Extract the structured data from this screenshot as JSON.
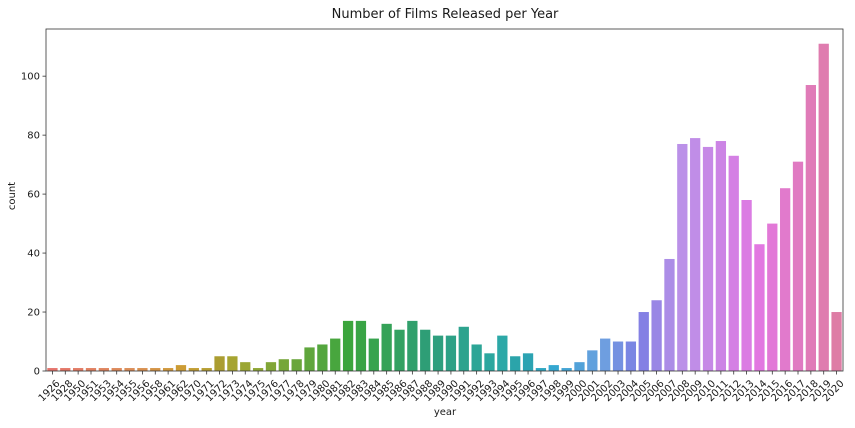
{
  "chart_data": {
    "type": "bar",
    "title": "Number of Films Released per Year",
    "xlabel": "year",
    "ylabel": "count",
    "ylim": [
      0,
      116
    ],
    "yticks": [
      0,
      20,
      40,
      60,
      80,
      100
    ],
    "grid": false,
    "legend": "none",
    "categories": [
      "1926",
      "1928",
      "1950",
      "1951",
      "1953",
      "1954",
      "1955",
      "1956",
      "1958",
      "1961",
      "1962",
      "1970",
      "1971",
      "1972",
      "1973",
      "1974",
      "1975",
      "1976",
      "1977",
      "1978",
      "1979",
      "1980",
      "1981",
      "1982",
      "1983",
      "1984",
      "1985",
      "1986",
      "1987",
      "1988",
      "1989",
      "1990",
      "1991",
      "1992",
      "1993",
      "1994",
      "1995",
      "1996",
      "1997",
      "1998",
      "1999",
      "2000",
      "2001",
      "2002",
      "2003",
      "2004",
      "2005",
      "2006",
      "2007",
      "2008",
      "2009",
      "2010",
      "2011",
      "2012",
      "2013",
      "2014",
      "2015",
      "2016",
      "2017",
      "2018",
      "2019",
      "2020"
    ],
    "values": [
      1,
      1,
      1,
      1,
      1,
      1,
      1,
      1,
      1,
      1,
      2,
      1,
      1,
      5,
      5,
      3,
      1,
      3,
      4,
      4,
      8,
      9,
      11,
      17,
      17,
      11,
      16,
      14,
      17,
      14,
      12,
      12,
      15,
      9,
      6,
      12,
      5,
      6,
      1,
      2,
      1,
      3,
      7,
      11,
      10,
      10,
      20,
      24,
      38,
      77,
      79,
      76,
      78,
      73,
      58,
      43,
      50,
      62,
      71,
      97,
      111,
      20
    ],
    "palette": "husl"
  }
}
